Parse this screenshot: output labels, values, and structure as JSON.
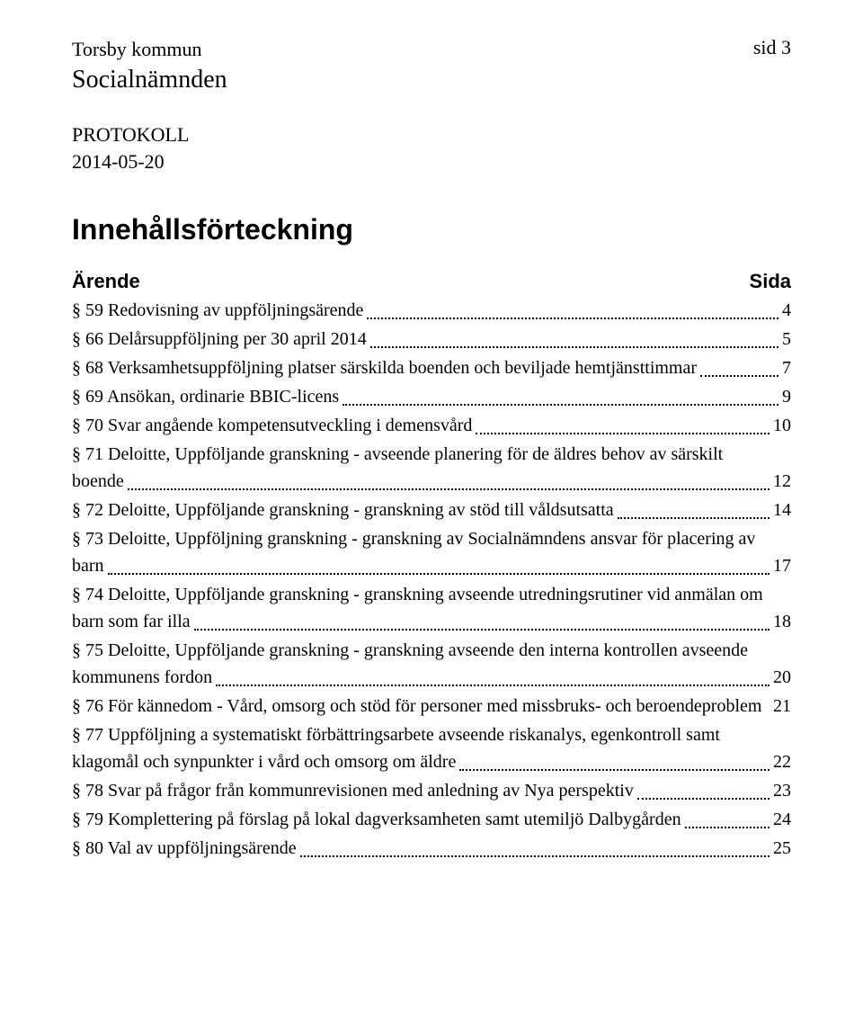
{
  "header": {
    "municipality": "Torsby kommun",
    "committee": "Socialnämnden",
    "page_label": "sid 3",
    "doc_type": "PROTOKOLL",
    "date": "2014-05-20"
  },
  "title": "Innehållsförteckning",
  "toc_header": {
    "left": "Ärende",
    "right": "Sida"
  },
  "toc": [
    {
      "label": "§ 59 Redovisning av uppföljningsärende",
      "page": "4"
    },
    {
      "label": "§ 66 Delårsuppföljning per 30 april 2014",
      "page": "5"
    },
    {
      "label": "§ 68 Verksamhetsuppföljning platser särskilda boenden och beviljade hemtjänsttimmar",
      "page": "7"
    },
    {
      "label": "§ 69 Ansökan, ordinarie BBIC-licens",
      "page": "9"
    },
    {
      "label": "§ 70 Svar angående kompetensutveckling i demensvård",
      "page": "10"
    },
    {
      "line1": "§ 71 Deloitte, Uppföljande granskning - avseende planering för de äldres behov av särskilt",
      "line2": "boende",
      "page": "12",
      "multiline": true
    },
    {
      "label": "§ 72 Deloitte, Uppföljande granskning - granskning av stöd till våldsutsatta",
      "page": "14"
    },
    {
      "line1": "§ 73 Deloitte, Uppföljning granskning - granskning av Socialnämndens ansvar för placering av",
      "line2": "barn",
      "page": "17",
      "multiline": true
    },
    {
      "line1": "§ 74 Deloitte, Uppföljande granskning - granskning avseende utredningsrutiner vid anmälan om",
      "line2": "barn som far illa",
      "page": "18",
      "multiline": true
    },
    {
      "line1": "§ 75 Deloitte, Uppföljande granskning - granskning avseende den interna kontrollen avseende",
      "line2": "kommunens fordon",
      "page": "20",
      "multiline": true
    },
    {
      "label": "§ 76 För kännedom - Vård, omsorg och stöd för personer med missbruks- och beroendeproblem",
      "page": "21",
      "tight": true
    },
    {
      "line1": "§ 77 Uppföljning a systematiskt förbättringsarbete avseende riskanalys, egenkontroll samt",
      "line2": "klagomål och synpunkter i vård och omsorg om äldre",
      "page": "22",
      "multiline": true
    },
    {
      "label": "§ 78 Svar på frågor från kommunrevisionen med anledning av Nya perspektiv",
      "page": "23"
    },
    {
      "label": "§ 79 Komplettering på förslag på lokal dagverksamheten samt utemiljö Dalbygården",
      "page": "24"
    },
    {
      "label": "§ 80 Val av uppföljningsärende",
      "page": "25"
    }
  ]
}
